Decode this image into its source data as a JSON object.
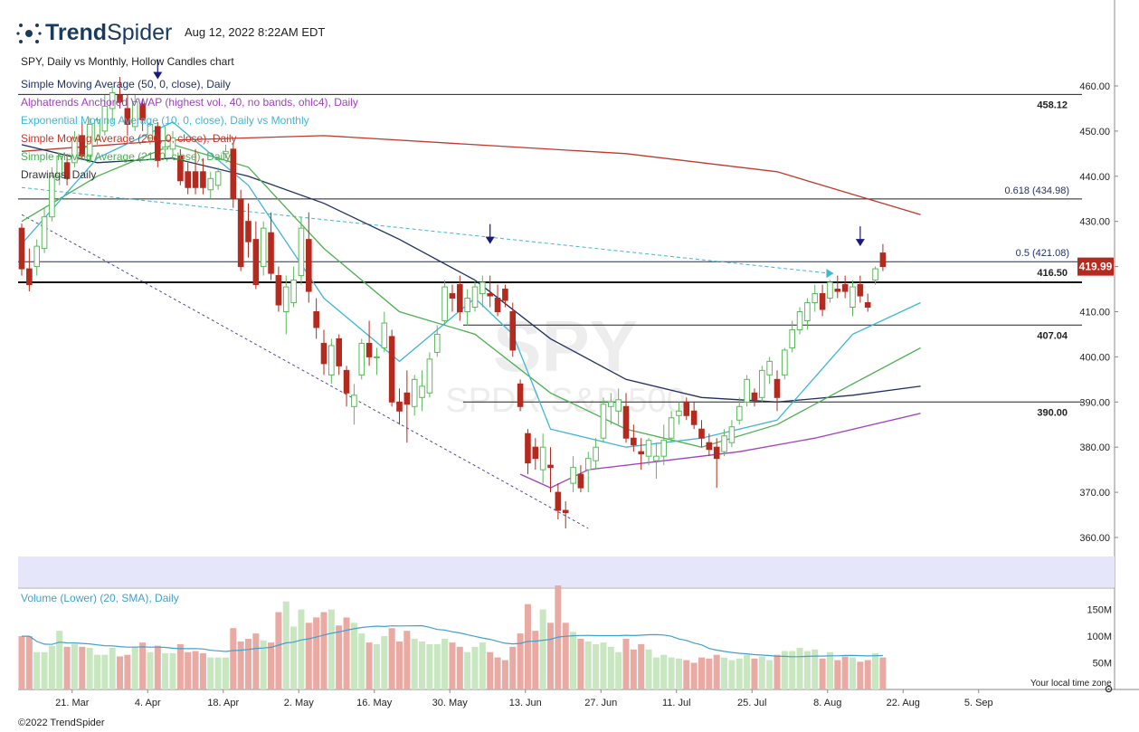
{
  "header": {
    "brand_bold": "Trend",
    "brand_light": "Spider",
    "timestamp": "Aug 12, 2022 8:22AM EDT",
    "chart_title": "SPY, Daily vs Monthly, Hollow Candles chart",
    "footer": "©2022 TrendSpider",
    "local_tz": "Your local time zone",
    "watermark_ticker": "SPY",
    "watermark_name": "SPDR S&P 500"
  },
  "legend": [
    {
      "label": "Simple Moving Average (50, 0, close), Daily",
      "color": "#1f2f5e"
    },
    {
      "label": "Alphatrends Anchored VWAP (highest vol., 40, no bands, ohlc4), Daily",
      "color": "#a040c0"
    },
    {
      "label": "Exponential Moving Average (10, 0, close), Daily vs Monthly",
      "color": "#3fb6d6"
    },
    {
      "label": "Simple Moving Average (200, 0, close), Daily",
      "color": "#c0392b"
    },
    {
      "label": "Simple Moving Average (21, 0, close), Daily",
      "color": "#4caf50"
    },
    {
      "label": "Drawings, Daily",
      "color": "#333333"
    }
  ],
  "price_labels": {
    "level_458": "458.12",
    "fib_618": "0.618 (434.98)",
    "fib_5": "0.5 (421.08)",
    "level_4165": "416.50",
    "level_407": "407.04",
    "level_390": "390.00",
    "last_price": "419.99"
  },
  "volume_label": "Volume (Lower) (20, SMA), Daily",
  "colors": {
    "up": "#5cb85c",
    "down": "#b52a1e",
    "last_bg": "#b52a1e",
    "vol_up": "#c8e6c0",
    "vol_down": "#e8aaa2"
  },
  "chart_data": {
    "type": "candlestick",
    "ylim": [
      356,
      464
    ],
    "yticks": [
      "460.00",
      "450.00",
      "440.00",
      "430.00",
      "420.00",
      "410.00",
      "400.00",
      "390.00",
      "380.00",
      "370.00",
      "360.00"
    ],
    "volume_ylim": [
      0,
      190
    ],
    "volume_ticks": [
      "150M",
      "100M",
      "50M"
    ],
    "x_ticks": [
      "21. Mar",
      "4. Apr",
      "18. Apr",
      "2. May",
      "16. May",
      "30. May",
      "13. Jun",
      "27. Jun",
      "11. Jul",
      "25. Jul",
      "8. Aug",
      "22. Aug",
      "5. Sep"
    ],
    "horizontal_levels": [
      458.12,
      434.98,
      421.08,
      416.5,
      407.04,
      390.0
    ],
    "last_price": 419.99,
    "candles": [
      {
        "o": 428.5,
        "h": 429.5,
        "l": 418,
        "c": 419.5,
        "v": 100
      },
      {
        "o": 419.5,
        "h": 424,
        "l": 414.5,
        "c": 416,
        "v": 100
      },
      {
        "o": 420,
        "h": 426,
        "l": 418,
        "c": 424.5,
        "v": 70
      },
      {
        "o": 424,
        "h": 433,
        "l": 423,
        "c": 431,
        "v": 70
      },
      {
        "o": 431,
        "h": 442,
        "l": 430,
        "c": 440,
        "v": 82
      },
      {
        "o": 440,
        "h": 445,
        "l": 438,
        "c": 444.5,
        "v": 110
      },
      {
        "o": 443,
        "h": 445,
        "l": 438,
        "c": 439.5,
        "v": 80
      },
      {
        "o": 443,
        "h": 450,
        "l": 442,
        "c": 448.5,
        "v": 85
      },
      {
        "o": 449,
        "h": 452,
        "l": 444,
        "c": 444.5,
        "v": 80
      },
      {
        "o": 444.5,
        "h": 453,
        "l": 443,
        "c": 451.5,
        "v": 78
      },
      {
        "o": 448,
        "h": 453,
        "l": 447,
        "c": 452.5,
        "v": 65
      },
      {
        "o": 450,
        "h": 458,
        "l": 449,
        "c": 455.5,
        "v": 65
      },
      {
        "o": 455,
        "h": 460,
        "l": 452,
        "c": 458.5,
        "v": 78
      },
      {
        "o": 458,
        "h": 462,
        "l": 455,
        "c": 456.5,
        "v": 62
      },
      {
        "o": 455,
        "h": 458,
        "l": 449,
        "c": 451.5,
        "v": 65
      },
      {
        "o": 451,
        "h": 458,
        "l": 450,
        "c": 456.5,
        "v": 80
      },
      {
        "o": 456,
        "h": 457,
        "l": 450,
        "c": 452.5,
        "v": 88
      },
      {
        "o": 448.5,
        "h": 452,
        "l": 447,
        "c": 451.5,
        "v": 70
      },
      {
        "o": 451,
        "h": 452,
        "l": 442,
        "c": 443.5,
        "v": 82
      },
      {
        "o": 446,
        "h": 451,
        "l": 444,
        "c": 446.5,
        "v": 68
      },
      {
        "o": 446,
        "h": 450,
        "l": 444.5,
        "c": 448.5,
        "v": 68
      },
      {
        "o": 444.5,
        "h": 446,
        "l": 438,
        "c": 439,
        "v": 85
      },
      {
        "o": 441,
        "h": 443,
        "l": 436,
        "c": 437.5,
        "v": 70
      },
      {
        "o": 441,
        "h": 446,
        "l": 436,
        "c": 437.5,
        "v": 72
      },
      {
        "o": 441,
        "h": 444,
        "l": 436,
        "c": 437.5,
        "v": 68
      },
      {
        "o": 437,
        "h": 441,
        "l": 435,
        "c": 439.5,
        "v": 60
      },
      {
        "o": 438,
        "h": 442,
        "l": 437,
        "c": 441,
        "v": 60
      },
      {
        "o": 445,
        "h": 447,
        "l": 444,
        "c": 445.5,
        "v": 60
      },
      {
        "o": 446,
        "h": 447.5,
        "l": 433,
        "c": 435,
        "v": 115
      },
      {
        "o": 435,
        "h": 437,
        "l": 419,
        "c": 420,
        "v": 90
      },
      {
        "o": 430,
        "h": 434,
        "l": 422,
        "c": 425.5,
        "v": 95
      },
      {
        "o": 426,
        "h": 430,
        "l": 415,
        "c": 416,
        "v": 105
      },
      {
        "o": 420,
        "h": 430,
        "l": 418,
        "c": 428.5,
        "v": 92
      },
      {
        "o": 427.5,
        "h": 432,
        "l": 417,
        "c": 418.5,
        "v": 88
      },
      {
        "o": 418,
        "h": 420,
        "l": 410,
        "c": 411.5,
        "v": 145
      },
      {
        "o": 410,
        "h": 418,
        "l": 405,
        "c": 415.5,
        "v": 165
      },
      {
        "o": 412,
        "h": 420,
        "l": 411,
        "c": 417,
        "v": 118
      },
      {
        "o": 418,
        "h": 431,
        "l": 416,
        "c": 428.5,
        "v": 150
      },
      {
        "o": 426,
        "h": 432,
        "l": 412,
        "c": 414.5,
        "v": 125
      },
      {
        "o": 410,
        "h": 413,
        "l": 404,
        "c": 406.5,
        "v": 135
      },
      {
        "o": 403,
        "h": 406,
        "l": 396,
        "c": 398.5,
        "v": 145
      },
      {
        "o": 396,
        "h": 404,
        "l": 394,
        "c": 402.5,
        "v": 150
      },
      {
        "o": 404,
        "h": 405,
        "l": 396,
        "c": 398,
        "v": 120
      },
      {
        "o": 397,
        "h": 398,
        "l": 389,
        "c": 392,
        "v": 135
      },
      {
        "o": 389,
        "h": 394,
        "l": 385,
        "c": 391.5,
        "v": 125
      },
      {
        "o": 396,
        "h": 404,
        "l": 395,
        "c": 403,
        "v": 105
      },
      {
        "o": 403,
        "h": 408,
        "l": 398,
        "c": 400,
        "v": 88
      },
      {
        "o": 400,
        "h": 402,
        "l": 396,
        "c": 400,
        "v": 85
      },
      {
        "o": 402,
        "h": 410,
        "l": 401,
        "c": 407.5,
        "v": 100
      },
      {
        "o": 404.5,
        "h": 406,
        "l": 389,
        "c": 390,
        "v": 115
      },
      {
        "o": 390,
        "h": 393,
        "l": 385,
        "c": 388,
        "v": 90
      },
      {
        "o": 392,
        "h": 397,
        "l": 381,
        "c": 389.5,
        "v": 110
      },
      {
        "o": 389,
        "h": 396,
        "l": 387,
        "c": 395,
        "v": 95
      },
      {
        "o": 391,
        "h": 397,
        "l": 388,
        "c": 393.5,
        "v": 90
      },
      {
        "o": 392,
        "h": 401,
        "l": 391,
        "c": 399.5,
        "v": 85
      },
      {
        "o": 401,
        "h": 407,
        "l": 400,
        "c": 405,
        "v": 85
      },
      {
        "o": 408,
        "h": 417,
        "l": 407,
        "c": 415.5,
        "v": 95
      },
      {
        "o": 414,
        "h": 416,
        "l": 410,
        "c": 413,
        "v": 88
      },
      {
        "o": 416,
        "h": 418,
        "l": 408,
        "c": 410,
        "v": 80
      },
      {
        "o": 410,
        "h": 415,
        "l": 407,
        "c": 413,
        "v": 70
      },
      {
        "o": 411,
        "h": 417,
        "l": 410,
        "c": 415.5,
        "v": 80
      },
      {
        "o": 414,
        "h": 418,
        "l": 411,
        "c": 416.5,
        "v": 88
      },
      {
        "o": 414,
        "h": 418,
        "l": 411,
        "c": 413.5,
        "v": 70
      },
      {
        "o": 413,
        "h": 416,
        "l": 409,
        "c": 410,
        "v": 60
      },
      {
        "o": 415,
        "h": 416,
        "l": 411,
        "c": 412.5,
        "v": 55
      },
      {
        "o": 410,
        "h": 412,
        "l": 400,
        "c": 401.5,
        "v": 80
      },
      {
        "o": 394,
        "h": 395,
        "l": 388,
        "c": 389,
        "v": 105
      },
      {
        "o": 383,
        "h": 384,
        "l": 374,
        "c": 376.5,
        "v": 160
      },
      {
        "o": 380,
        "h": 382,
        "l": 375,
        "c": 377.5,
        "v": 110
      },
      {
        "o": 375,
        "h": 383,
        "l": 372,
        "c": 380,
        "v": 150
      },
      {
        "o": 376,
        "h": 380,
        "l": 370,
        "c": 375.5,
        "v": 125
      },
      {
        "o": 370,
        "h": 372,
        "l": 364,
        "c": 366,
        "v": 195
      },
      {
        "o": 366,
        "h": 368,
        "l": 362,
        "c": 365.5,
        "v": 125
      },
      {
        "o": 372,
        "h": 378,
        "l": 370,
        "c": 375.5,
        "v": 108
      },
      {
        "o": 374,
        "h": 376,
        "l": 370,
        "c": 371,
        "v": 95
      },
      {
        "o": 375,
        "h": 379,
        "l": 370,
        "c": 377.5,
        "v": 90
      },
      {
        "o": 377,
        "h": 382,
        "l": 375,
        "c": 380,
        "v": 85
      },
      {
        "o": 382,
        "h": 391,
        "l": 381,
        "c": 389.5,
        "v": 88
      },
      {
        "o": 389,
        "h": 392,
        "l": 385,
        "c": 390,
        "v": 80
      },
      {
        "o": 388,
        "h": 393,
        "l": 385,
        "c": 390.5,
        "v": 70
      },
      {
        "o": 389,
        "h": 392,
        "l": 381,
        "c": 382,
        "v": 95
      },
      {
        "o": 382,
        "h": 385,
        "l": 379,
        "c": 380.5,
        "v": 75
      },
      {
        "o": 379,
        "h": 382,
        "l": 375,
        "c": 378.5,
        "v": 85
      },
      {
        "o": 378,
        "h": 382,
        "l": 376,
        "c": 381.5,
        "v": 75
      },
      {
        "o": 377,
        "h": 381,
        "l": 373,
        "c": 378,
        "v": 60
      },
      {
        "o": 378,
        "h": 385,
        "l": 376,
        "c": 381.5,
        "v": 65
      },
      {
        "o": 382,
        "h": 388,
        "l": 381,
        "c": 386.5,
        "v": 60
      },
      {
        "o": 387,
        "h": 390,
        "l": 385,
        "c": 388,
        "v": 58
      },
      {
        "o": 390,
        "h": 391,
        "l": 386,
        "c": 387,
        "v": 55
      },
      {
        "o": 388,
        "h": 390,
        "l": 384,
        "c": 385,
        "v": 50
      },
      {
        "o": 384,
        "h": 386,
        "l": 380,
        "c": 382,
        "v": 60
      },
      {
        "o": 381,
        "h": 383,
        "l": 378,
        "c": 379.5,
        "v": 58
      },
      {
        "o": 380,
        "h": 382,
        "l": 371,
        "c": 377.5,
        "v": 65
      },
      {
        "o": 379,
        "h": 384,
        "l": 378,
        "c": 382.5,
        "v": 60
      },
      {
        "o": 381,
        "h": 386,
        "l": 380,
        "c": 384.5,
        "v": 55
      },
      {
        "o": 386,
        "h": 391,
        "l": 385,
        "c": 389,
        "v": 58
      },
      {
        "o": 390,
        "h": 396,
        "l": 389,
        "c": 395,
        "v": 65
      },
      {
        "o": 392,
        "h": 393,
        "l": 389,
        "c": 390.5,
        "v": 58
      },
      {
        "o": 391,
        "h": 398,
        "l": 390,
        "c": 397,
        "v": 62
      },
      {
        "o": 396,
        "h": 400,
        "l": 394,
        "c": 399,
        "v": 55
      },
      {
        "o": 395,
        "h": 397,
        "l": 388,
        "c": 391,
        "v": 65
      },
      {
        "o": 396,
        "h": 402,
        "l": 395,
        "c": 401.5,
        "v": 72
      },
      {
        "o": 402,
        "h": 408,
        "l": 401,
        "c": 406,
        "v": 72
      },
      {
        "o": 406,
        "h": 411,
        "l": 405,
        "c": 410,
        "v": 78
      },
      {
        "o": 408,
        "h": 413,
        "l": 406,
        "c": 412,
        "v": 72
      },
      {
        "o": 412,
        "h": 416,
        "l": 410,
        "c": 414,
        "v": 75
      },
      {
        "o": 414,
        "h": 416,
        "l": 409,
        "c": 410.5,
        "v": 58
      },
      {
        "o": 413,
        "h": 417,
        "l": 412,
        "c": 416.5,
        "v": 70
      },
      {
        "o": 415,
        "h": 418,
        "l": 413,
        "c": 414.5,
        "v": 55
      },
      {
        "o": 416,
        "h": 418,
        "l": 413,
        "c": 414.5,
        "v": 62
      },
      {
        "o": 411,
        "h": 417,
        "l": 409,
        "c": 415.5,
        "v": 60
      },
      {
        "o": 416,
        "h": 418,
        "l": 412,
        "c": 413.5,
        "v": 52
      },
      {
        "o": 412,
        "h": 414,
        "l": 410,
        "c": 411,
        "v": 55
      },
      {
        "o": 417,
        "h": 420,
        "l": 416,
        "c": 419.5,
        "v": 68
      },
      {
        "o": 423,
        "h": 425,
        "l": 419,
        "c": 420,
        "v": 60
      }
    ],
    "indicators": {
      "sma200": [
        {
          "x": 0,
          "y": 445.5
        },
        {
          "x": 20,
          "y": 448
        },
        {
          "x": 40,
          "y": 449
        },
        {
          "x": 60,
          "y": 447
        },
        {
          "x": 80,
          "y": 445
        },
        {
          "x": 100,
          "y": 441
        },
        {
          "x": 119,
          "y": 431.5
        }
      ],
      "sma50": [
        {
          "x": 0,
          "y": 447
        },
        {
          "x": 10,
          "y": 443
        },
        {
          "x": 20,
          "y": 444
        },
        {
          "x": 30,
          "y": 440
        },
        {
          "x": 40,
          "y": 434
        },
        {
          "x": 50,
          "y": 426
        },
        {
          "x": 60,
          "y": 417
        },
        {
          "x": 70,
          "y": 404
        },
        {
          "x": 80,
          "y": 395
        },
        {
          "x": 90,
          "y": 391
        },
        {
          "x": 100,
          "y": 390
        },
        {
          "x": 110,
          "y": 391.5
        },
        {
          "x": 119,
          "y": 393.5
        }
      ],
      "sma21": [
        {
          "x": 0,
          "y": 430
        },
        {
          "x": 10,
          "y": 440
        },
        {
          "x": 20,
          "y": 447
        },
        {
          "x": 30,
          "y": 442
        },
        {
          "x": 40,
          "y": 424
        },
        {
          "x": 50,
          "y": 410
        },
        {
          "x": 60,
          "y": 405
        },
        {
          "x": 70,
          "y": 392
        },
        {
          "x": 80,
          "y": 384
        },
        {
          "x": 90,
          "y": 380
        },
        {
          "x": 100,
          "y": 385
        },
        {
          "x": 110,
          "y": 394
        },
        {
          "x": 119,
          "y": 402
        }
      ],
      "ema10": [
        {
          "x": 0,
          "y": 425
        },
        {
          "x": 10,
          "y": 444
        },
        {
          "x": 20,
          "y": 452
        },
        {
          "x": 30,
          "y": 438
        },
        {
          "x": 40,
          "y": 413
        },
        {
          "x": 50,
          "y": 399
        },
        {
          "x": 60,
          "y": 413
        },
        {
          "x": 65,
          "y": 405
        },
        {
          "x": 70,
          "y": 384
        },
        {
          "x": 80,
          "y": 380
        },
        {
          "x": 90,
          "y": 382
        },
        {
          "x": 100,
          "y": 386
        },
        {
          "x": 110,
          "y": 405
        },
        {
          "x": 119,
          "y": 412
        }
      ],
      "avwap": [
        {
          "x": 66,
          "y": 374
        },
        {
          "x": 70,
          "y": 371
        },
        {
          "x": 75,
          "y": 375
        },
        {
          "x": 85,
          "y": 377
        },
        {
          "x": 95,
          "y": 379
        },
        {
          "x": 105,
          "y": 382
        },
        {
          "x": 119,
          "y": 387.5
        }
      ]
    }
  }
}
